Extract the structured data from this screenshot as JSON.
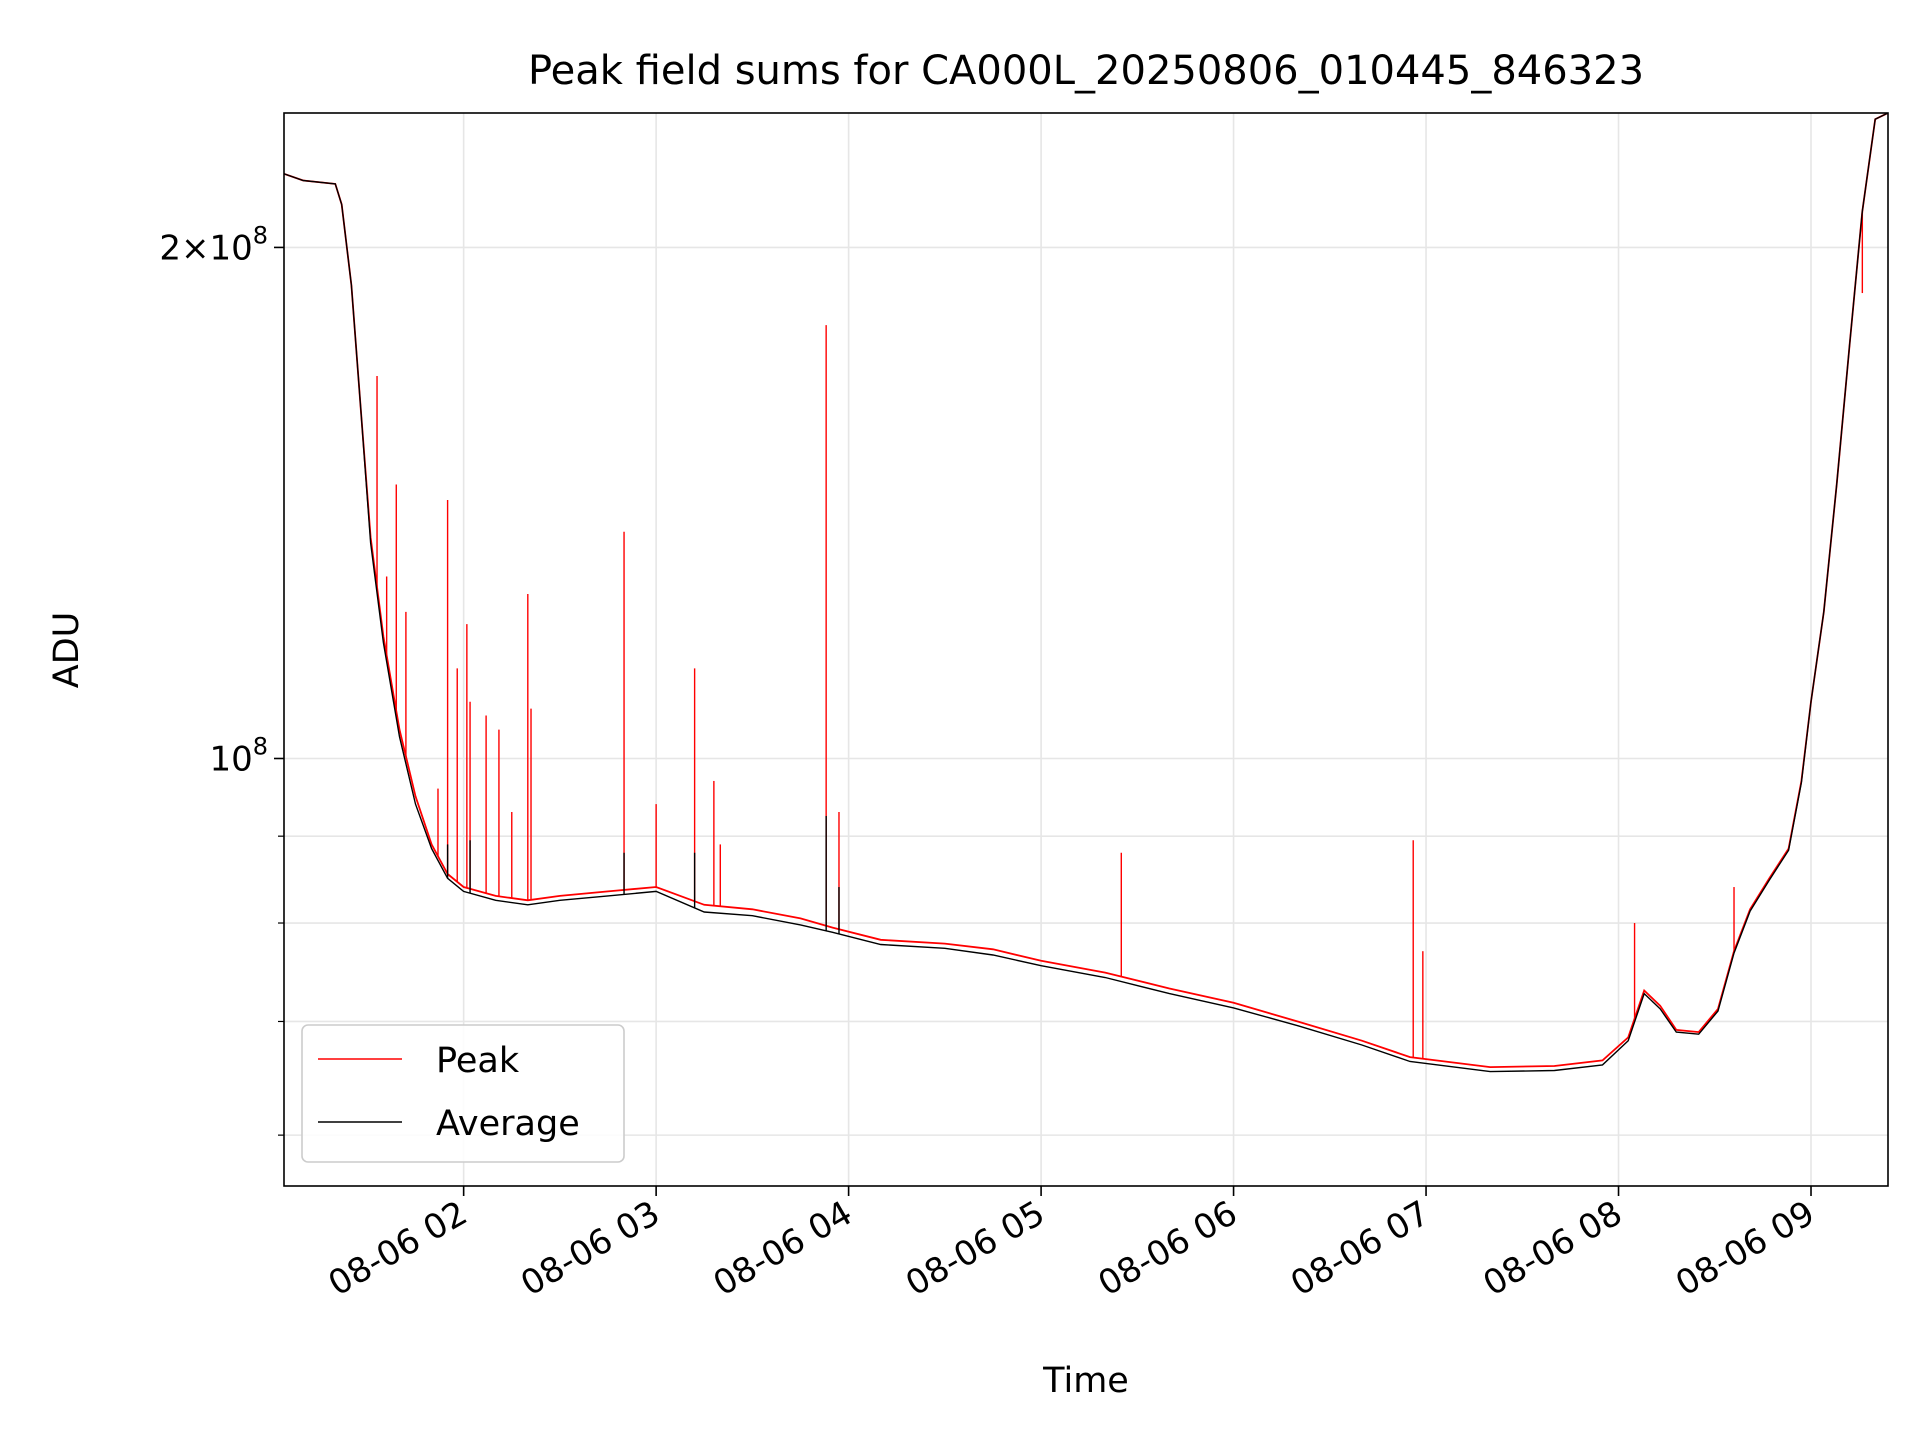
{
  "chart_data": {
    "type": "line",
    "title": "Peak field sums for CA000L_20250806_010445_846323",
    "xlabel": "Time",
    "ylabel": "ADU",
    "yscale": "log",
    "grid": true,
    "legend_position": "lower-left",
    "xlim": [
      "2025-08-06 01:04",
      "2025-08-06 09:24"
    ],
    "ylim": [
      56000000,
      240000000
    ],
    "x_ticks": [
      "08-06 02",
      "08-06 03",
      "08-06 04",
      "08-06 05",
      "08-06 06",
      "08-06 07",
      "08-06 08",
      "08-06 09"
    ],
    "x_tick_times": [
      "2025-08-06 02:00",
      "2025-08-06 03:00",
      "2025-08-06 04:00",
      "2025-08-06 05:00",
      "2025-08-06 06:00",
      "2025-08-06 07:00",
      "2025-08-06 08:00",
      "2025-08-06 09:00"
    ],
    "y_ticks_major": [
      {
        "value": 100000000,
        "base": "10",
        "exp": "8",
        "coef": ""
      },
      {
        "value": 200000000,
        "base": "10",
        "exp": "8",
        "coef": "2×"
      }
    ],
    "y_ticks_minor": [
      60000000,
      70000000,
      80000000,
      90000000
    ],
    "series": [
      {
        "name": "Peak",
        "color": "#ff0000",
        "x": [
          "2025-08-06 01:04",
          "2025-08-06 01:10",
          "2025-08-06 01:20",
          "2025-08-06 01:22",
          "2025-08-06 01:25",
          "2025-08-06 01:28",
          "2025-08-06 01:31",
          "2025-08-06 01:35",
          "2025-08-06 01:40",
          "2025-08-06 01:45",
          "2025-08-06 01:50",
          "2025-08-06 01:55",
          "2025-08-06 02:00",
          "2025-08-06 02:10",
          "2025-08-06 02:20",
          "2025-08-06 02:30",
          "2025-08-06 02:45",
          "2025-08-06 03:00",
          "2025-08-06 03:15",
          "2025-08-06 03:30",
          "2025-08-06 03:45",
          "2025-08-06 03:55",
          "2025-08-06 04:10",
          "2025-08-06 04:30",
          "2025-08-06 04:45",
          "2025-08-06 05:00",
          "2025-08-06 05:20",
          "2025-08-06 05:40",
          "2025-08-06 06:00",
          "2025-08-06 06:20",
          "2025-08-06 06:40",
          "2025-08-06 06:55",
          "2025-08-06 07:20",
          "2025-08-06 07:40",
          "2025-08-06 07:55",
          "2025-08-06 08:03",
          "2025-08-06 08:08",
          "2025-08-06 08:13",
          "2025-08-06 08:18",
          "2025-08-06 08:25",
          "2025-08-06 08:31",
          "2025-08-06 08:36",
          "2025-08-06 08:41",
          "2025-08-06 08:47",
          "2025-08-06 08:53",
          "2025-08-06 08:57",
          "2025-08-06 09:00",
          "2025-08-06 09:04",
          "2025-08-06 09:08",
          "2025-08-06 09:12",
          "2025-08-06 09:16",
          "2025-08-06 09:20",
          "2025-08-06 09:24"
        ],
        "y": [
          221000000,
          219000000,
          218000000,
          212000000,
          190000000,
          160000000,
          135000000,
          118000000,
          104000000,
          95000000,
          89000000,
          85500000,
          84000000,
          83000000,
          82500000,
          83000000,
          83500000,
          84000000,
          82000000,
          81500000,
          80500000,
          79500000,
          78200000,
          77800000,
          77200000,
          76000000,
          74800000,
          73200000,
          71800000,
          70000000,
          68200000,
          66700000,
          65800000,
          65900000,
          66400000,
          68500000,
          73000000,
          71500000,
          69200000,
          69000000,
          71200000,
          77000000,
          81500000,
          85000000,
          88500000,
          97000000,
          108000000,
          122000000,
          145000000,
          175000000,
          210000000,
          238000000,
          240000000
        ],
        "spikes": [
          {
            "x": "2025-08-06 01:33",
            "y": 168000000
          },
          {
            "x": "2025-08-06 01:36",
            "y": 128000000
          },
          {
            "x": "2025-08-06 01:39",
            "y": 145000000
          },
          {
            "x": "2025-08-06 01:42",
            "y": 122000000
          },
          {
            "x": "2025-08-06 01:52",
            "y": 96000000
          },
          {
            "x": "2025-08-06 01:55",
            "y": 142000000
          },
          {
            "x": "2025-08-06 01:58",
            "y": 113000000
          },
          {
            "x": "2025-08-06 02:01",
            "y": 120000000
          },
          {
            "x": "2025-08-06 02:02",
            "y": 108000000
          },
          {
            "x": "2025-08-06 02:07",
            "y": 106000000
          },
          {
            "x": "2025-08-06 02:11",
            "y": 104000000
          },
          {
            "x": "2025-08-06 02:15",
            "y": 93000000
          },
          {
            "x": "2025-08-06 02:20",
            "y": 125000000
          },
          {
            "x": "2025-08-06 02:21",
            "y": 107000000
          },
          {
            "x": "2025-08-06 02:50",
            "y": 136000000
          },
          {
            "x": "2025-08-06 03:00",
            "y": 94000000
          },
          {
            "x": "2025-08-06 03:12",
            "y": 113000000
          },
          {
            "x": "2025-08-06 03:18",
            "y": 97000000
          },
          {
            "x": "2025-08-06 03:20",
            "y": 89000000
          },
          {
            "x": "2025-08-06 03:53",
            "y": 180000000
          },
          {
            "x": "2025-08-06 03:57",
            "y": 93000000
          },
          {
            "x": "2025-08-06 05:25",
            "y": 88000000
          },
          {
            "x": "2025-08-06 06:56",
            "y": 89500000
          },
          {
            "x": "2025-08-06 06:59",
            "y": 77000000
          },
          {
            "x": "2025-08-06 08:05",
            "y": 80000000
          },
          {
            "x": "2025-08-06 08:36",
            "y": 84000000
          },
          {
            "x": "2025-08-06 09:16",
            "y": 188000000
          }
        ]
      },
      {
        "name": "Average",
        "color": "#000000",
        "x": [
          "2025-08-06 01:04",
          "2025-08-06 01:10",
          "2025-08-06 01:20",
          "2025-08-06 01:22",
          "2025-08-06 01:25",
          "2025-08-06 01:28",
          "2025-08-06 01:31",
          "2025-08-06 01:35",
          "2025-08-06 01:40",
          "2025-08-06 01:45",
          "2025-08-06 01:50",
          "2025-08-06 01:55",
          "2025-08-06 02:00",
          "2025-08-06 02:10",
          "2025-08-06 02:20",
          "2025-08-06 02:30",
          "2025-08-06 02:45",
          "2025-08-06 03:00",
          "2025-08-06 03:15",
          "2025-08-06 03:30",
          "2025-08-06 03:45",
          "2025-08-06 03:55",
          "2025-08-06 04:10",
          "2025-08-06 04:30",
          "2025-08-06 04:45",
          "2025-08-06 05:00",
          "2025-08-06 05:20",
          "2025-08-06 05:40",
          "2025-08-06 06:00",
          "2025-08-06 06:20",
          "2025-08-06 06:40",
          "2025-08-06 06:55",
          "2025-08-06 07:20",
          "2025-08-06 07:40",
          "2025-08-06 07:55",
          "2025-08-06 08:03",
          "2025-08-06 08:08",
          "2025-08-06 08:13",
          "2025-08-06 08:18",
          "2025-08-06 08:25",
          "2025-08-06 08:31",
          "2025-08-06 08:36",
          "2025-08-06 08:41",
          "2025-08-06 08:47",
          "2025-08-06 08:53",
          "2025-08-06 08:57",
          "2025-08-06 09:00",
          "2025-08-06 09:04",
          "2025-08-06 09:08",
          "2025-08-06 09:12",
          "2025-08-06 09:16",
          "2025-08-06 09:20",
          "2025-08-06 09:24"
        ],
        "y": [
          221000000,
          219000000,
          218000000,
          212000000,
          190000000,
          160000000,
          134000000,
          117000000,
          103000000,
          94000000,
          88500000,
          85000000,
          83500000,
          82500000,
          82000000,
          82500000,
          83000000,
          83500000,
          81200000,
          80800000,
          79800000,
          79000000,
          77700000,
          77300000,
          76600000,
          75500000,
          74300000,
          72700000,
          71300000,
          69600000,
          67800000,
          66300000,
          65400000,
          65500000,
          66000000,
          68200000,
          72700000,
          71200000,
          69000000,
          68800000,
          71000000,
          76800000,
          81300000,
          84800000,
          88300000,
          96800000,
          108000000,
          122000000,
          145000000,
          175000000,
          210000000,
          238000000,
          240000000
        ],
        "spikes": [
          {
            "x": "2025-08-06 01:55",
            "y": 89000000
          },
          {
            "x": "2025-08-06 02:02",
            "y": 89500000
          },
          {
            "x": "2025-08-06 02:50",
            "y": 88000000
          },
          {
            "x": "2025-08-06 03:12",
            "y": 88000000
          },
          {
            "x": "2025-08-06 03:53",
            "y": 92500000
          },
          {
            "x": "2025-08-06 03:57",
            "y": 84000000
          }
        ]
      }
    ]
  }
}
